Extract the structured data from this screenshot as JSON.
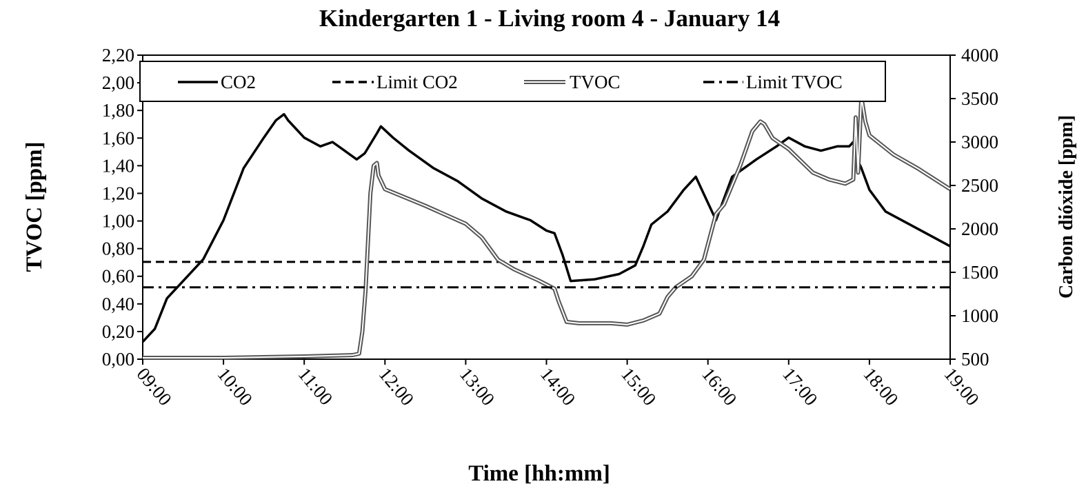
{
  "chart_data": {
    "type": "line",
    "title": "Kindergarten 1 - Living  room 4 - January 14",
    "xlabel": "Time [hh:mm]",
    "ylabel_left": "TVOC [ppm]",
    "ylabel_right": "Carbon  dióxide  [ppm]",
    "x_ticks": [
      "09:00",
      "10:00",
      "11:00",
      "12:00",
      "13:00",
      "14:00",
      "15:00",
      "16:00",
      "17:00",
      "18:00",
      "19:00"
    ],
    "xlim_hours": [
      9,
      19
    ],
    "ylim_left": [
      0,
      2.2
    ],
    "ylim_right": [
      500,
      4000
    ],
    "y_ticks_left": [
      "0,00",
      "0,20",
      "0,40",
      "0,60",
      "0,80",
      "1,00",
      "1,20",
      "1,40",
      "1,60",
      "1,80",
      "2,00",
      "2,20"
    ],
    "y_ticks_right": [
      "500",
      "1000",
      "1500",
      "2000",
      "2500",
      "3000",
      "3500",
      "4000"
    ],
    "legend": {
      "placement": "top-inside"
    },
    "series": [
      {
        "name": "CO2",
        "axis": "right",
        "style": "solid",
        "x": [
          9.0,
          9.15,
          9.3,
          9.5,
          9.75,
          10.0,
          10.25,
          10.5,
          10.65,
          10.75,
          10.8,
          11.0,
          11.2,
          11.35,
          11.5,
          11.65,
          11.75,
          11.9,
          11.95,
          12.1,
          12.3,
          12.6,
          12.9,
          13.2,
          13.5,
          13.8,
          14.0,
          14.1,
          14.2,
          14.3,
          14.6,
          14.9,
          15.1,
          15.2,
          15.3,
          15.5,
          15.7,
          15.85,
          16.0,
          16.1,
          16.3,
          16.6,
          16.85,
          17.0,
          17.2,
          17.4,
          17.6,
          17.75,
          17.8,
          17.85,
          17.9,
          18.0,
          18.2,
          18.5,
          18.8,
          19.0
        ],
        "values": [
          700,
          850,
          1200,
          1400,
          1650,
          2100,
          2700,
          3050,
          3250,
          3320,
          3250,
          3050,
          2950,
          3000,
          2900,
          2800,
          2870,
          3100,
          3180,
          3050,
          2900,
          2700,
          2550,
          2350,
          2200,
          2100,
          1980,
          1950,
          1700,
          1400,
          1420,
          1480,
          1580,
          1800,
          2050,
          2200,
          2450,
          2600,
          2300,
          2100,
          2600,
          2800,
          2950,
          3050,
          2950,
          2900,
          2950,
          2950,
          3000,
          2800,
          2700,
          2450,
          2200,
          2050,
          1900,
          1800
        ]
      },
      {
        "name": "Limit CO2",
        "axis": "right",
        "style": "dashed",
        "x": [
          9.0,
          19.0
        ],
        "values": [
          1620,
          1620
        ]
      },
      {
        "name": "TVOC",
        "axis": "left",
        "style": "double",
        "x": [
          9.0,
          10.0,
          11.0,
          11.6,
          11.68,
          11.72,
          11.76,
          11.82,
          11.86,
          11.9,
          11.92,
          12.0,
          12.5,
          13.0,
          13.2,
          13.4,
          13.6,
          13.9,
          14.1,
          14.15,
          14.25,
          14.4,
          14.8,
          15.0,
          15.2,
          15.4,
          15.5,
          15.6,
          15.8,
          15.95,
          16.1,
          16.2,
          16.4,
          16.55,
          16.65,
          16.7,
          16.8,
          17.0,
          17.3,
          17.5,
          17.7,
          17.8,
          17.83,
          17.86,
          17.9,
          17.95,
          18.0,
          18.3,
          18.6,
          19.0
        ],
        "values": [
          0.01,
          0.01,
          0.02,
          0.03,
          0.04,
          0.2,
          0.5,
          1.2,
          1.4,
          1.42,
          1.33,
          1.23,
          1.11,
          0.98,
          0.88,
          0.72,
          0.65,
          0.57,
          0.51,
          0.42,
          0.27,
          0.26,
          0.26,
          0.25,
          0.28,
          0.33,
          0.45,
          0.52,
          0.6,
          0.72,
          1.05,
          1.12,
          1.4,
          1.65,
          1.72,
          1.7,
          1.6,
          1.52,
          1.35,
          1.3,
          1.27,
          1.3,
          1.75,
          1.35,
          1.9,
          1.72,
          1.62,
          1.48,
          1.38,
          1.23
        ]
      },
      {
        "name": "Limit TVOC",
        "axis": "left",
        "style": "dashdot",
        "x": [
          9.0,
          19.0
        ],
        "values": [
          0.52,
          0.52
        ]
      }
    ]
  }
}
